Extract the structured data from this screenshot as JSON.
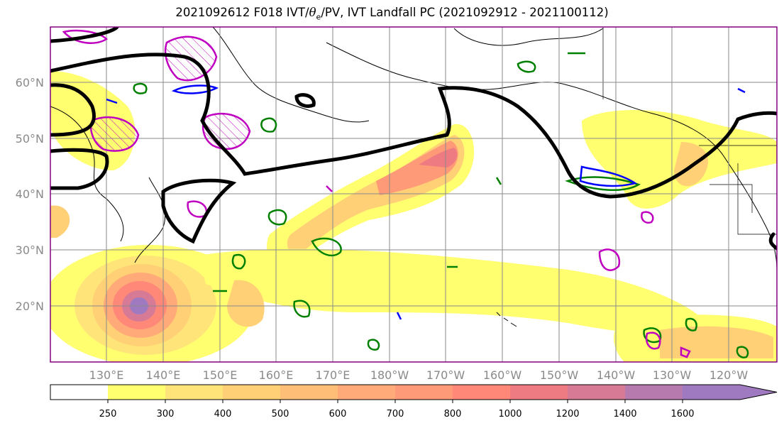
{
  "title": {
    "prefix": "2021092612 F018 IVT/",
    "theta": "θ",
    "theta_sub": "e",
    "suffix": "/PV, IVT Landfall PC (2021092912 - 2021100112)"
  },
  "axes": {
    "lat_labels": [
      "60°N",
      "50°N",
      "40°N",
      "30°N",
      "20°N"
    ],
    "lon_labels": [
      "130°E",
      "140°E",
      "150°E",
      "160°E",
      "170°E",
      "180°W",
      "170°W",
      "160°W",
      "150°W",
      "140°W",
      "130°W",
      "120°W"
    ]
  },
  "colorbar": {
    "levels": [
      "250",
      "300",
      "400",
      "500",
      "600",
      "700",
      "800",
      "1000",
      "1200",
      "1400",
      "1600"
    ],
    "colors": [
      "#ffffff",
      "#ffff70",
      "#ffe47a",
      "#ffd075",
      "#ffbe78",
      "#ffaa78",
      "#ff9a78",
      "#ff8878",
      "#ee7a82",
      "#d67a96",
      "#b67aae",
      "#a07ac0"
    ]
  },
  "contour_colors": {
    "geopotential": "#000000",
    "theta_e": "#008000",
    "pv": "#0000ff",
    "landfall_pc": "#c000c0"
  }
}
